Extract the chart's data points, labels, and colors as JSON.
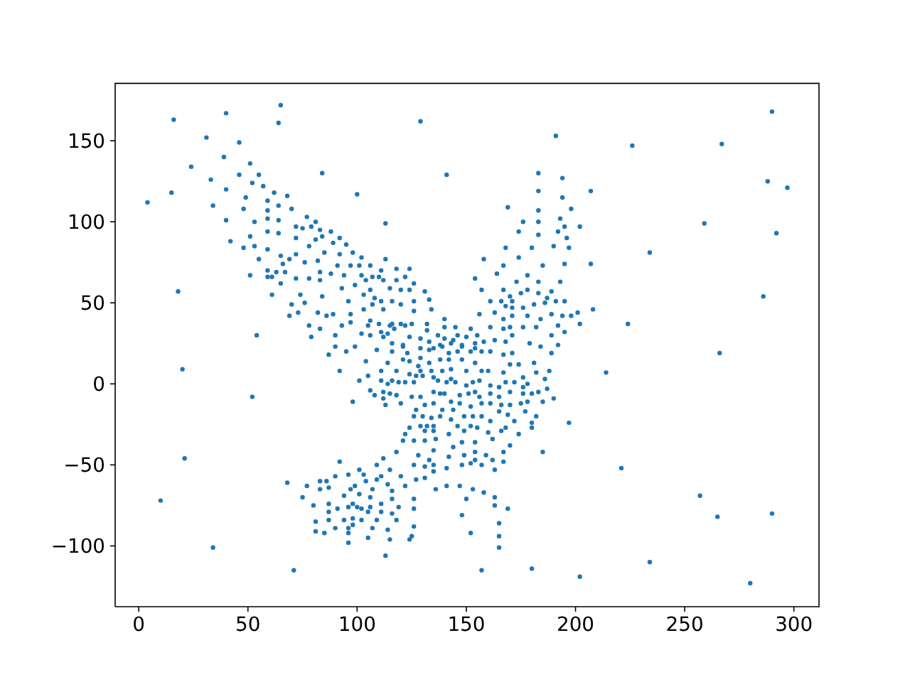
{
  "chart_data": {
    "type": "scatter",
    "color": "#1f77b4",
    "marker": "circle",
    "grid": false,
    "xlim": [
      -10.8,
      311.5
    ],
    "ylim": [
      -137.5,
      185.4
    ],
    "xticks": [
      0,
      50,
      100,
      150,
      200,
      250,
      300
    ],
    "yticks": [
      {
        "value": -100,
        "label": "−100"
      },
      {
        "value": -50,
        "label": "−50"
      },
      0,
      50,
      100,
      150
    ],
    "x": [
      65,
      16,
      40,
      64,
      31,
      46,
      39,
      24,
      51,
      84,
      46,
      55,
      33,
      52,
      57,
      15,
      40,
      62,
      68,
      49,
      59,
      4,
      34,
      64,
      48,
      59,
      70,
      59,
      64,
      77,
      40,
      53,
      81,
      72,
      75,
      79,
      83,
      88,
      59,
      64,
      42,
      51,
      72,
      81,
      84,
      92,
      89,
      95,
      48,
      53,
      59,
      78,
      85,
      92,
      98,
      65,
      72,
      69,
      55,
      66,
      76,
      82,
      91,
      97,
      59,
      63,
      67,
      83,
      88,
      94,
      51,
      59,
      61,
      72,
      78,
      83,
      65,
      99,
      93,
      18,
      61,
      74,
      84,
      96,
      70,
      76,
      69,
      73,
      82,
      86,
      89,
      97,
      97,
      93,
      78,
      83,
      54,
      79,
      90,
      90,
      129,
      191,
      141,
      100,
      183,
      194,
      183,
      207,
      194,
      169,
      183,
      198,
      113,
      176,
      183,
      193,
      195,
      202,
      174,
      192,
      183,
      196,
      168,
      180,
      190,
      197,
      102,
      113,
      158,
      174,
      101,
      106,
      111,
      118,
      124,
      167,
      185,
      195,
      207,
      102,
      107,
      110,
      104,
      112,
      118,
      122,
      126,
      154,
      164,
      178,
      173,
      183,
      193,
      106,
      115,
      120,
      124,
      131,
      157,
      167,
      170,
      178,
      175,
      183,
      189,
      187,
      191,
      103,
      108,
      111,
      116,
      120,
      126,
      133,
      161,
      166,
      171,
      168,
      171,
      176,
      181,
      186,
      195,
      103,
      107,
      112,
      126,
      134,
      163,
      106,
      156,
      167,
      171,
      178,
      184,
      189,
      194,
      198,
      201,
      202,
      140,
      105,
      110,
      115,
      116,
      120,
      122,
      125,
      132,
      140,
      145,
      152,
      161,
      167,
      170,
      176,
      182,
      192,
      195,
      102,
      106,
      111,
      114,
      117,
      112,
      124,
      129,
      132,
      137,
      146,
      150,
      155,
      163,
      168,
      171,
      189,
      116,
      121,
      133,
      140,
      143,
      144,
      148,
      154,
      158,
      179,
      192,
      138,
      290,
      226,
      267,
      288,
      297,
      259,
      292,
      234,
      286,
      208,
      224,
      266,
      214,
      221,
      257,
      265,
      290,
      234,
      280,
      87,
      95,
      99,
      92,
      20,
      52,
      98,
      21,
      92,
      10,
      34,
      71,
      68,
      77,
      83,
      86,
      90,
      96,
      83,
      87,
      97,
      99,
      75,
      80,
      87,
      94,
      98,
      91,
      96,
      87,
      81,
      87,
      94,
      98,
      98,
      90,
      96,
      81,
      85,
      96,
      96,
      109,
      121,
      116,
      123,
      129,
      133,
      135,
      139,
      142,
      146,
      148,
      152,
      154,
      157,
      161,
      167,
      171,
      184,
      189,
      104,
      114,
      121,
      124,
      129,
      133,
      138,
      142,
      148,
      154,
      128,
      118,
      111,
      124,
      129,
      134,
      139,
      143,
      150,
      157,
      160,
      167,
      170,
      174,
      181,
      188,
      182,
      105,
      127,
      101,
      111,
      116,
      114,
      119,
      122,
      126,
      130,
      135,
      137,
      141,
      143,
      145,
      150,
      153,
      156,
      161,
      165,
      168,
      172,
      176,
      176,
      178,
      186,
      187,
      106,
      108,
      112,
      115,
      118,
      120,
      113,
      112,
      125,
      129,
      135,
      138,
      140,
      135,
      143,
      147,
      151,
      154,
      156,
      161,
      165,
      170,
      176,
      180,
      183,
      178,
      185,
      190,
      147,
      152,
      157,
      161,
      166,
      170,
      175,
      127,
      131,
      139,
      144,
      153,
      157,
      165,
      169,
      177,
      182,
      126,
      130,
      134,
      138,
      143,
      149,
      161,
      172,
      180,
      180,
      197,
      124,
      129,
      132,
      135,
      146,
      152,
      155,
      168,
      131,
      135,
      149,
      160,
      166,
      122,
      142,
      174,
      121,
      126,
      131,
      136,
      148,
      154,
      162,
      170,
      135,
      144,
      154,
      167,
      185,
      118,
      128,
      133,
      142,
      149,
      159,
      112,
      126,
      131,
      135,
      141,
      148,
      152,
      154,
      157,
      162,
      167,
      163,
      135,
      109,
      115,
      101,
      103,
      104,
      109,
      111,
      120,
      127,
      131,
      101,
      107,
      114,
      116,
      122,
      136,
      141,
      147,
      153,
      158,
      106,
      111,
      116,
      119,
      126,
      126,
      150,
      163,
      163,
      169,
      100,
      102,
      106,
      102,
      105,
      111,
      116,
      109,
      118,
      148,
      165,
      107,
      114,
      126,
      152,
      165,
      105,
      115,
      124,
      125,
      165,
      113,
      157,
      180,
      202
    ],
    "values": [
      172,
      163,
      167,
      161,
      152,
      149,
      140,
      134,
      136,
      130,
      129,
      129,
      126,
      124,
      122,
      118,
      120,
      118,
      116,
      115,
      113,
      112,
      110,
      110,
      108,
      107,
      108,
      102,
      101,
      103,
      101,
      100,
      100,
      97,
      96,
      97,
      95,
      94,
      94,
      93,
      88,
      91,
      90,
      89,
      91,
      90,
      87,
      86,
      84,
      85,
      83,
      85,
      81,
      80,
      81,
      79,
      80,
      77,
      77,
      74,
      75,
      76,
      73,
      73,
      70,
      69,
      69,
      69,
      68,
      67,
      67,
      66,
      66,
      65,
      65,
      64,
      62,
      61,
      59,
      57,
      55,
      55,
      54,
      51,
      49,
      50,
      42,
      44,
      44,
      42,
      43,
      43,
      38,
      36,
      36,
      34,
      30,
      29,
      30,
      23,
      162,
      153,
      129,
      117,
      130,
      127,
      119,
      119,
      115,
      109,
      107,
      108,
      99,
      100,
      100,
      102,
      97,
      97,
      94,
      94,
      92,
      90,
      84,
      84,
      85,
      84,
      78,
      77,
      77,
      78,
      73,
      73,
      70,
      71,
      71,
      73,
      73,
      74,
      74,
      67,
      66,
      66,
      64,
      64,
      64,
      66,
      62,
      65,
      68,
      67,
      63,
      63,
      63,
      58,
      59,
      58,
      58,
      57,
      58,
      58,
      54,
      58,
      56,
      56,
      57,
      53,
      51,
      55,
      53,
      51,
      51,
      49,
      51,
      52,
      51,
      51,
      51,
      48,
      47,
      47,
      49,
      50,
      51,
      46,
      49,
      46,
      45,
      46,
      44,
      39,
      43,
      40,
      42,
      42,
      40,
      43,
      42,
      42,
      44,
      37,
      40,
      36,
      37,
      36,
      37,
      37,
      36,
      37,
      37,
      35,
      35,
      34,
      35,
      34,
      35,
      35,
      35,
      36,
      32,
      31,
      30,
      32,
      31,
      34,
      29,
      29,
      28,
      33,
      30,
      30,
      29,
      30,
      27,
      26,
      30,
      30,
      25,
      24,
      26,
      28,
      25,
      27,
      24,
      25,
      26,
      25,
      24,
      24,
      168,
      147,
      148,
      125,
      121,
      99,
      93,
      81,
      54,
      46,
      37,
      19,
      7,
      -52,
      -69,
      -82,
      -80,
      -110,
      -123,
      18,
      20,
      23,
      8,
      9,
      -8,
      -11,
      -46,
      -48,
      -72,
      -101,
      -115,
      -61,
      -63,
      -60,
      -60,
      -57,
      -56,
      -65,
      -64,
      -65,
      -63,
      -70,
      -75,
      -74,
      -69,
      -74,
      -77,
      -76,
      -79,
      -85,
      -84,
      -84,
      -83,
      -87,
      -89,
      -89,
      -91,
      -92,
      -92,
      -98,
      21,
      23,
      20,
      19,
      22,
      21,
      22,
      23,
      19,
      20,
      23,
      20,
      22,
      20,
      20,
      18,
      19,
      23,
      19,
      14,
      13,
      15,
      14,
      16,
      13,
      15,
      15,
      15,
      13,
      11,
      8,
      8,
      6,
      8,
      8,
      8,
      9,
      8,
      8,
      8,
      7,
      12,
      12,
      13,
      8,
      7,
      5,
      5,
      2,
      2,
      2,
      0,
      1,
      1,
      1,
      5,
      4,
      2,
      1,
      3,
      1,
      -1,
      1,
      2,
      -1,
      -2,
      1,
      1,
      4,
      -2,
      0,
      3,
      -3,
      -4,
      -7,
      -5,
      -6,
      -7,
      -12,
      -13,
      -9,
      -8,
      -8,
      -5,
      -6,
      -6,
      -12,
      -11,
      -7,
      -6,
      -5,
      -8,
      -6,
      -8,
      -5,
      -6,
      -6,
      -5,
      -11,
      -11,
      -9,
      -12,
      -14,
      -12,
      -12,
      -13,
      -13,
      -12,
      -16,
      -13,
      -16,
      -16,
      -20,
      -20,
      -17,
      -19,
      -17,
      -20,
      -20,
      -20,
      -21,
      -20,
      -22,
      -20,
      -23,
      -23,
      -24,
      -27,
      -24,
      -27,
      -26,
      -26,
      -26,
      -26,
      -26,
      -27,
      -27,
      -29,
      -29,
      -29,
      -30,
      -29,
      -31,
      -31,
      -31,
      -35,
      -35,
      -35,
      -34,
      -36,
      -36,
      -34,
      -38,
      -41,
      -39,
      -42,
      -42,
      -42,
      -42,
      -44,
      -47,
      -45,
      -44,
      -44,
      -46,
      -50,
      -51,
      -50,
      -52,
      -50,
      -49,
      -47,
      -50,
      -47,
      -48,
      -53,
      -54,
      -50,
      -53,
      -53,
      -56,
      -60,
      -59,
      -57,
      -57,
      -59,
      -58,
      -68,
      -65,
      -62,
      -66,
      -63,
      -65,
      -63,
      -63,
      -65,
      -67,
      -70,
      -74,
      -71,
      -76,
      -71,
      -77,
      -71,
      -70,
      -75,
      -77,
      -76,
      -77,
      -76,
      -84,
      -79,
      -79,
      -80,
      -84,
      -84,
      -81,
      -86,
      -89,
      -90,
      -88,
      -92,
      -94,
      -95,
      -96,
      -96,
      -94,
      -101,
      -106,
      -115,
      -114,
      -119
    ]
  }
}
